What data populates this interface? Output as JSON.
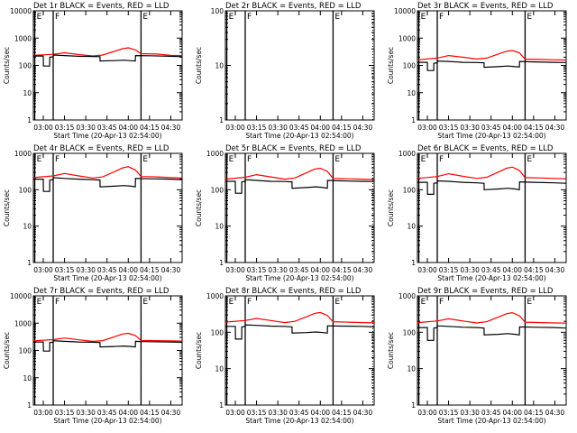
{
  "chart_data": {
    "type": "line",
    "layout": "3x3 grid of log-scale time-series panels",
    "xlabel": "Start Time (20-Apr-13 02:54:00)",
    "ylabel": "Counts/sec",
    "x_unit": "minutes after 03:00",
    "xlim": [
      -7,
      98
    ],
    "x_ticks": [
      {
        "v": 0,
        "label": "03:00"
      },
      {
        "v": 15,
        "label": "03:15"
      },
      {
        "v": 30,
        "label": "03:30"
      },
      {
        "v": 45,
        "label": "03:45"
      },
      {
        "v": 60,
        "label": "04:00"
      },
      {
        "v": 75,
        "label": "04:15"
      },
      {
        "v": 90,
        "label": "04:30"
      }
    ],
    "y_scale": "log",
    "ylim": [
      1,
      10000
    ],
    "y_ticks": [
      {
        "v": 1,
        "label": "1"
      },
      {
        "v": 10,
        "label": "10"
      },
      {
        "v": 100,
        "label": "100"
      },
      {
        "v": 1000,
        "label": "1000"
      },
      {
        "v": 10000,
        "label": "10000"
      }
    ],
    "series_colors": {
      "events": "#000000",
      "lld": "#ff0000"
    },
    "panels": [
      {
        "title": "Det 1r  BLACK = Events, RED = LLD",
        "ylim": [
          1,
          10000
        ],
        "markers": [
          {
            "x": -6,
            "label": "E"
          },
          {
            "x": 7,
            "label": "F"
          },
          {
            "x": 69,
            "label": "E"
          }
        ],
        "dotted": [
          {
            "x": 69
          }
        ],
        "events": {
          "x": [
            -7,
            0,
            0.1,
            4.5,
            4.6,
            7,
            7.1,
            15,
            25,
            35,
            40,
            40.1,
            50,
            57,
            62,
            65,
            65.1,
            75,
            90,
            98
          ],
          "y": [
            220,
            220,
            95,
            95,
            200,
            210,
            240,
            230,
            215,
            212,
            210,
            145,
            150,
            155,
            148,
            145,
            230,
            225,
            215,
            210
          ]
        },
        "lld": {
          "x": [
            -7,
            7,
            15,
            25,
            35,
            42,
            50,
            56,
            60,
            65,
            69,
            80,
            90,
            98
          ],
          "y": [
            235,
            255,
            290,
            250,
            222,
            240,
            325,
            410,
            440,
            370,
            270,
            260,
            235,
            230
          ]
        }
      },
      {
        "title": "Det 2r  BLACK = Events, RED = LLD",
        "ylim": [
          1,
          100
        ],
        "markers": [
          {
            "x": -6,
            "label": "E"
          },
          {
            "x": 7,
            "label": "F"
          },
          {
            "x": 69,
            "label": "E"
          }
        ],
        "dotted": [
          {
            "x": 97
          }
        ],
        "events": null,
        "lld": null
      },
      {
        "title": "Det 3r  BLACK = Events, RED = LLD",
        "ylim": [
          1,
          10000
        ],
        "markers": [
          {
            "x": -6,
            "label": "E"
          },
          {
            "x": 7,
            "label": "F"
          },
          {
            "x": 69,
            "label": "E"
          }
        ],
        "dotted": [
          {
            "x": 69
          }
        ],
        "events": {
          "x": [
            -7,
            0,
            0.1,
            4.5,
            4.6,
            7,
            7.1,
            15,
            25,
            35,
            40,
            40.1,
            50,
            57,
            62,
            65,
            65.1,
            75,
            90,
            98
          ],
          "y": [
            130,
            130,
            65,
            65,
            120,
            125,
            145,
            140,
            130,
            128,
            125,
            85,
            90,
            95,
            90,
            88,
            140,
            135,
            130,
            128
          ]
        },
        "lld": {
          "x": [
            -7,
            7,
            15,
            25,
            35,
            42,
            50,
            56,
            60,
            65,
            69,
            80,
            90,
            98
          ],
          "y": [
            160,
            185,
            230,
            200,
            170,
            185,
            260,
            330,
            350,
            290,
            170,
            165,
            160,
            158
          ]
        }
      },
      {
        "title": "Det 4r  BLACK = Events, RED = LLD",
        "ylim": [
          1,
          1000
        ],
        "markers": [
          {
            "x": -6,
            "label": "E"
          },
          {
            "x": 7,
            "label": "F"
          },
          {
            "x": 69,
            "label": "E"
          }
        ],
        "dotted": [
          {
            "x": 69
          }
        ],
        "events": {
          "x": [
            -7,
            0,
            0.1,
            4.5,
            4.6,
            7,
            7.1,
            15,
            25,
            35,
            40,
            40.1,
            50,
            57,
            62,
            65,
            65.1,
            75,
            90,
            98
          ],
          "y": [
            195,
            195,
            90,
            90,
            185,
            190,
            215,
            205,
            195,
            190,
            185,
            120,
            125,
            130,
            125,
            120,
            205,
            200,
            195,
            190
          ]
        },
        "lld": {
          "x": [
            -7,
            7,
            15,
            25,
            35,
            42,
            50,
            56,
            60,
            65,
            69,
            80,
            90,
            98
          ],
          "y": [
            215,
            240,
            280,
            240,
            210,
            225,
            310,
            400,
            430,
            350,
            230,
            225,
            215,
            210
          ]
        }
      },
      {
        "title": "Det 5r  BLACK = Events, RED = LLD",
        "ylim": [
          1,
          1000
        ],
        "markers": [
          {
            "x": -6,
            "label": "E"
          },
          {
            "x": 7,
            "label": "F"
          },
          {
            "x": 69,
            "label": "E"
          }
        ],
        "dotted": [
          {
            "x": 97
          }
        ],
        "events": {
          "x": [
            -7,
            0,
            0.1,
            4.5,
            4.6,
            7,
            7.1,
            15,
            25,
            35,
            40,
            40.1,
            50,
            57,
            62,
            65,
            65.1,
            75,
            90,
            98
          ],
          "y": [
            170,
            170,
            80,
            80,
            165,
            170,
            190,
            180,
            170,
            168,
            165,
            110,
            115,
            120,
            115,
            110,
            180,
            175,
            170,
            168
          ]
        },
        "lld": {
          "x": [
            -7,
            7,
            15,
            25,
            35,
            42,
            50,
            56,
            60,
            65,
            69,
            80,
            90,
            98
          ],
          "y": [
            195,
            220,
            260,
            225,
            195,
            210,
            290,
            370,
            390,
            320,
            205,
            200,
            195,
            190
          ]
        }
      },
      {
        "title": "Det 6r  BLACK = Events, RED = LLD",
        "ylim": [
          1,
          1000
        ],
        "markers": [
          {
            "x": -6,
            "label": "E"
          },
          {
            "x": 7,
            "label": "F"
          },
          {
            "x": 69,
            "label": "E"
          }
        ],
        "dotted": [
          {
            "x": 69
          }
        ],
        "events": {
          "x": [
            -7,
            0,
            0.1,
            4.5,
            4.6,
            7,
            7.1,
            15,
            25,
            35,
            40,
            40.1,
            50,
            57,
            62,
            65,
            65.1,
            75,
            90,
            98
          ],
          "y": [
            160,
            160,
            75,
            75,
            150,
            155,
            175,
            170,
            160,
            155,
            150,
            100,
            105,
            110,
            105,
            100,
            165,
            160,
            155,
            150
          ]
        },
        "lld": {
          "x": [
            -7,
            7,
            15,
            25,
            35,
            42,
            50,
            56,
            60,
            65,
            69,
            80,
            90,
            98
          ],
          "y": [
            205,
            230,
            275,
            235,
            205,
            220,
            305,
            390,
            420,
            340,
            215,
            210,
            205,
            200
          ]
        }
      },
      {
        "title": "Det 7r  BLACK = Events, RED = LLD",
        "ylim": [
          1,
          10000
        ],
        "markers": [
          {
            "x": -6,
            "label": "E"
          },
          {
            "x": 7,
            "label": "F"
          },
          {
            "x": 69,
            "label": "E"
          }
        ],
        "dotted": [
          {
            "x": 69
          }
        ],
        "events": {
          "x": [
            -7,
            0,
            0.1,
            4.5,
            4.6,
            7,
            7.1,
            15,
            25,
            35,
            40,
            40.1,
            50,
            57,
            62,
            65,
            65.1,
            75,
            90,
            98
          ],
          "y": [
            205,
            205,
            95,
            95,
            195,
            200,
            225,
            215,
            205,
            200,
            195,
            135,
            140,
            145,
            140,
            135,
            215,
            210,
            205,
            200
          ]
        },
        "lld": {
          "x": [
            -7,
            7,
            15,
            25,
            35,
            42,
            50,
            56,
            60,
            65,
            69,
            80,
            90,
            98
          ],
          "y": [
            225,
            250,
            285,
            245,
            215,
            230,
            315,
            400,
            425,
            355,
            235,
            230,
            225,
            220
          ]
        }
      },
      {
        "title": "Det 8r  BLACK = Events, RED = LLD",
        "ylim": [
          1,
          1000
        ],
        "markers": [
          {
            "x": -6,
            "label": "E"
          },
          {
            "x": 7,
            "label": "F"
          },
          {
            "x": 69,
            "label": "E"
          }
        ],
        "dotted": [
          {
            "x": 97
          }
        ],
        "events": {
          "x": [
            -7,
            0,
            0.1,
            4.5,
            4.6,
            7,
            7.1,
            15,
            25,
            35,
            40,
            40.1,
            50,
            57,
            62,
            65,
            65.1,
            75,
            90,
            98
          ],
          "y": [
            145,
            145,
            65,
            65,
            140,
            145,
            160,
            155,
            148,
            145,
            140,
            95,
            98,
            102,
            98,
            95,
            150,
            148,
            145,
            140
          ]
        },
        "lld": {
          "x": [
            -7,
            7,
            15,
            25,
            35,
            42,
            50,
            56,
            60,
            65,
            69,
            80,
            90,
            98
          ],
          "y": [
            190,
            210,
            240,
            210,
            185,
            200,
            265,
            330,
            350,
            290,
            195,
            190,
            185,
            182
          ]
        }
      },
      {
        "title": "Det 9r  BLACK = Events, RED = LLD",
        "ylim": [
          1,
          1000
        ],
        "markers": [
          {
            "x": -6,
            "label": "E"
          },
          {
            "x": 7,
            "label": "F"
          },
          {
            "x": 69,
            "label": "E"
          }
        ],
        "dotted": [
          {
            "x": 69
          }
        ],
        "events": {
          "x": [
            -7,
            0,
            0.1,
            4.5,
            4.6,
            7,
            7.1,
            15,
            25,
            35,
            40,
            40.1,
            50,
            57,
            62,
            65,
            65.1,
            75,
            90,
            98
          ],
          "y": [
            135,
            135,
            60,
            60,
            130,
            135,
            150,
            145,
            138,
            135,
            130,
            85,
            88,
            92,
            88,
            85,
            140,
            138,
            135,
            130
          ]
        },
        "lld": {
          "x": [
            -7,
            7,
            15,
            25,
            35,
            42,
            50,
            56,
            60,
            65,
            69,
            80,
            90,
            98
          ],
          "y": [
            185,
            205,
            235,
            205,
            180,
            195,
            260,
            325,
            345,
            285,
            190,
            185,
            180,
            178
          ]
        }
      }
    ]
  }
}
